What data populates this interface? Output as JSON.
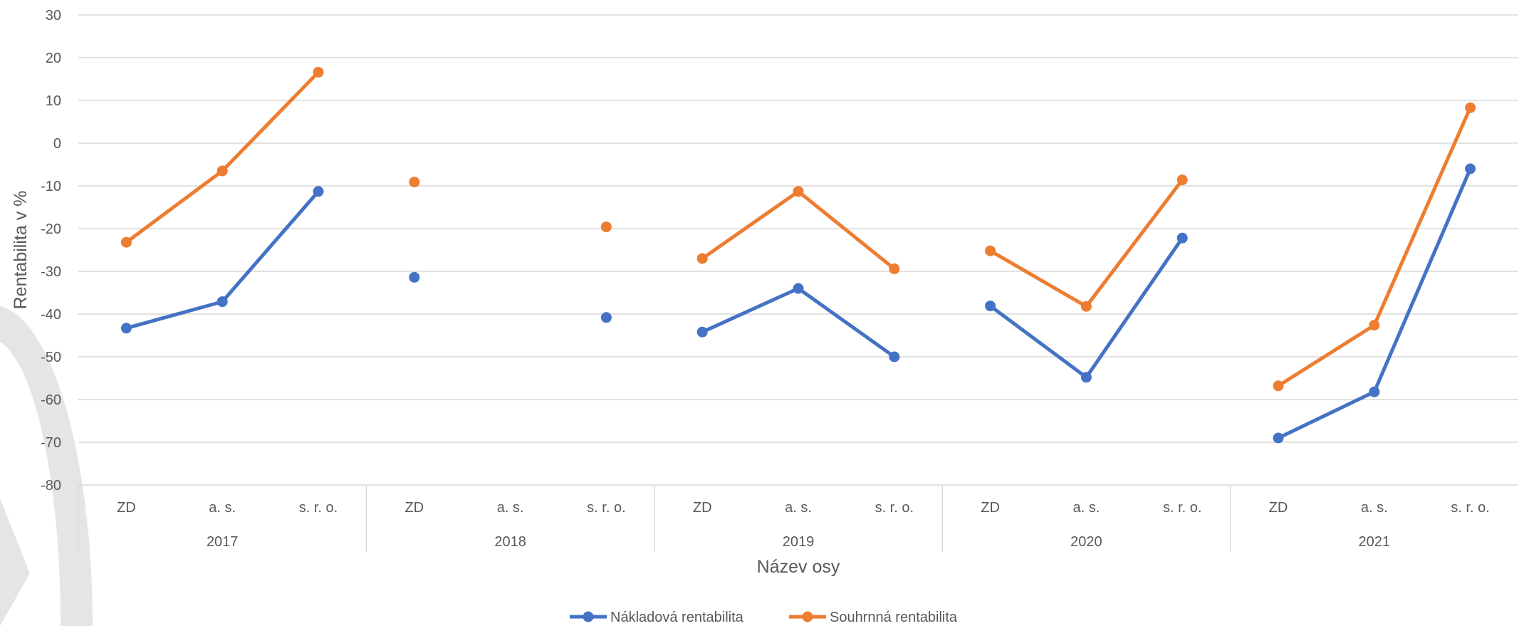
{
  "chart_data": {
    "type": "line",
    "groups": [
      {
        "label": "2017",
        "categories": [
          "ZD",
          "a. s.",
          "s. r. o."
        ]
      },
      {
        "label": "2018",
        "categories": [
          "ZD",
          "a. s.",
          "s. r. o."
        ]
      },
      {
        "label": "2019",
        "categories": [
          "ZD",
          "a. s.",
          "s. r. o."
        ]
      },
      {
        "label": "2020",
        "categories": [
          "ZD",
          "a. s.",
          "s. r. o."
        ]
      },
      {
        "label": "2021",
        "categories": [
          "ZD",
          "a. s.",
          "s. r. o."
        ]
      }
    ],
    "series": [
      {
        "name": "Nákladová rentabilita",
        "color": "#4472C4",
        "values": [
          -43.3,
          -37.1,
          -11.3,
          -31.4,
          null,
          -40.8,
          -44.2,
          -34.0,
          -50.0,
          -38.1,
          -54.8,
          -22.2,
          -69.0,
          -58.2,
          -6.0
        ]
      },
      {
        "name": "Souhrnná rentabilita",
        "color": "#ED7D31",
        "values": [
          -23.2,
          -6.5,
          16.6,
          -9.1,
          null,
          -19.6,
          -27.0,
          -11.3,
          -29.4,
          -25.2,
          -38.2,
          -8.6,
          -56.8,
          -42.6,
          8.3
        ]
      }
    ],
    "xlabel": "Název osy",
    "ylabel": "Rentabilita v %",
    "ylim": [
      -80,
      30
    ],
    "yticks": [
      30,
      20,
      10,
      0,
      -10,
      -20,
      -30,
      -40,
      -50,
      -60,
      -70,
      -80
    ],
    "grid": true,
    "legend_position": "bottom"
  }
}
